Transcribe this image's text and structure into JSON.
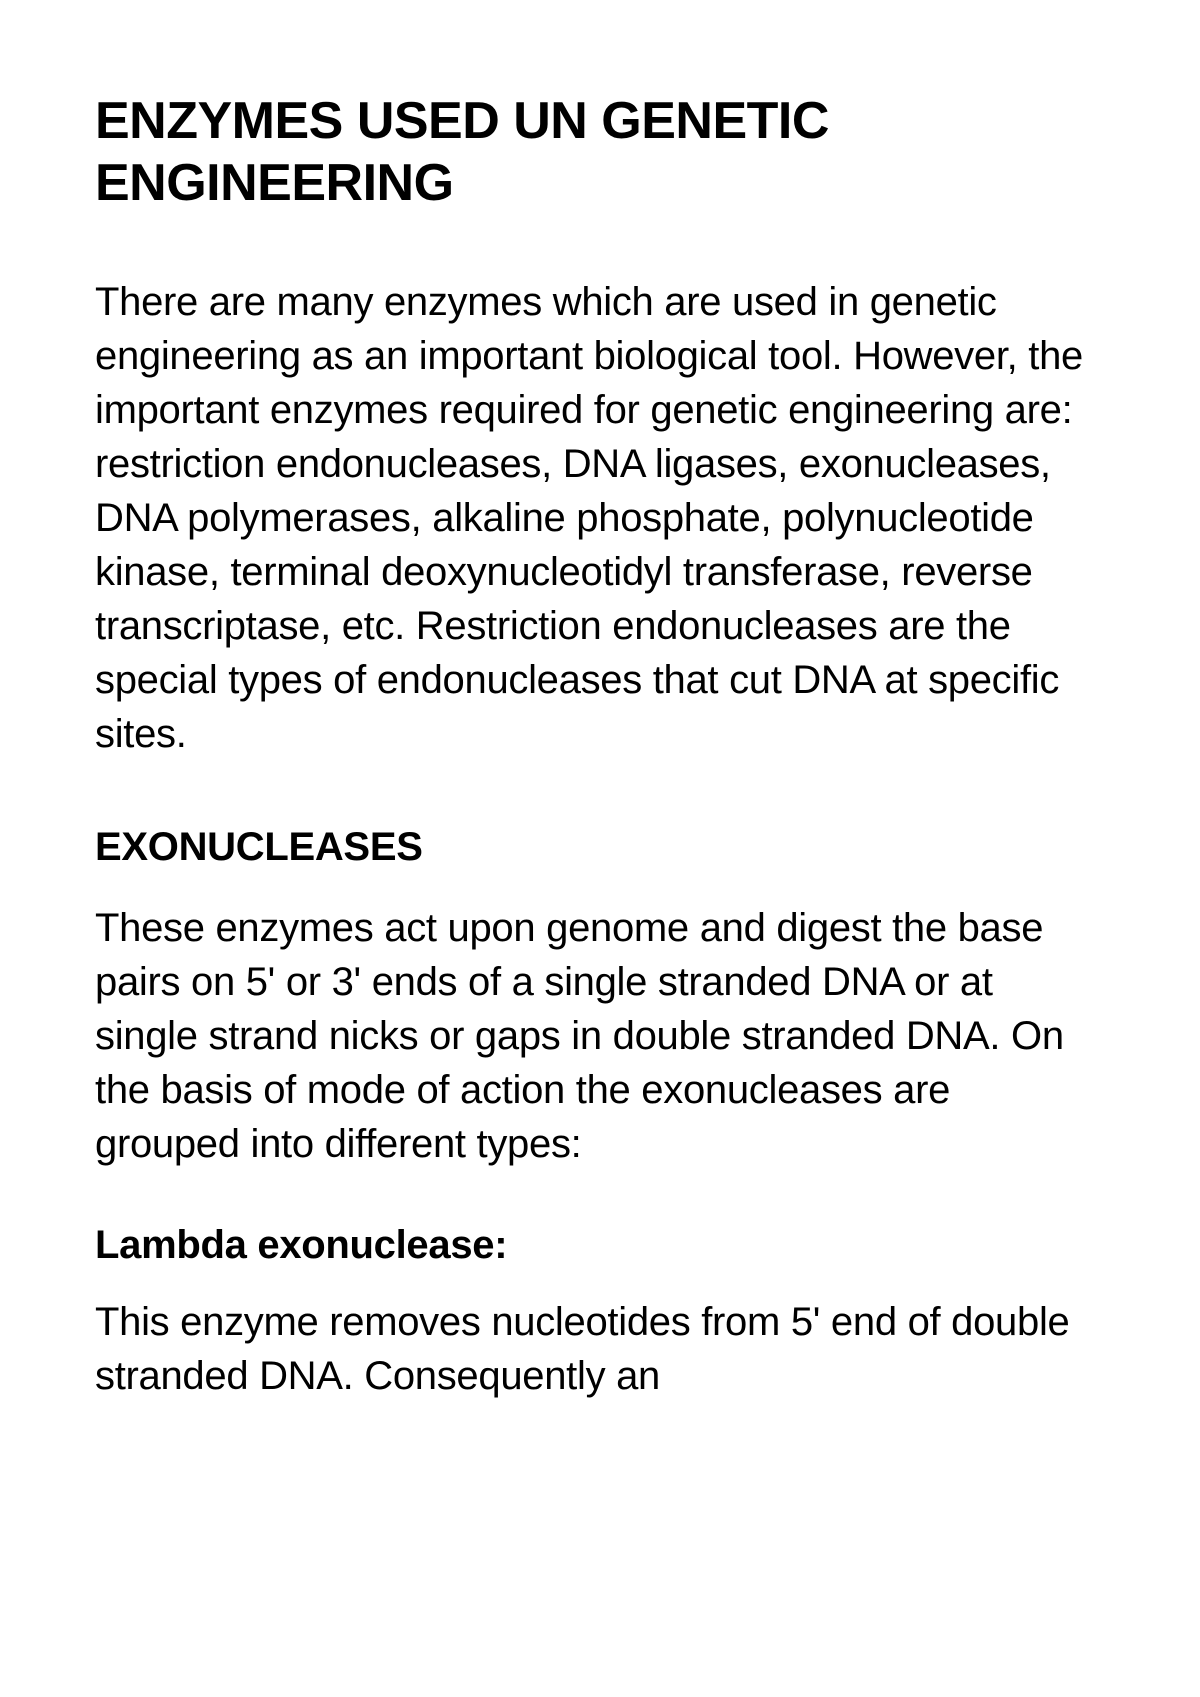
{
  "document": {
    "title": "ENZYMES USED UN GENETIC ENGINEERING",
    "intro_paragraph": "There are many enzymes which are used in genetic engineering as an important biological tool. However, the important enzymes required for genetic engineering are: restriction endonucleases, DNA ligases, exonucleases, DNA polymerases, alkaline phosphate, polynucleotide kinase, terminal deoxynucleotidyl transferase, reverse transcriptase, etc. Restriction endonucleases are the special types of endonucleases that cut DNA at specific sites.",
    "section1": {
      "heading": "EXONUCLEASES",
      "body": "These enzymes act upon genome and digest the base pairs on 5' or 3' ends of a single stranded DNA or at single strand nicks or gaps in double stranded DNA. On the basis of mode of action the exonucleases are grouped into different types:"
    },
    "section2": {
      "heading": "Lambda exonuclease:",
      "body": "This enzyme removes nucleotides from 5' end of double stranded DNA. Consequently an"
    },
    "styling": {
      "background_color": "#ffffff",
      "text_color": "#000000",
      "title_fontsize": 52,
      "title_fontweight": 800,
      "body_fontsize": 40,
      "body_fontweight": 400,
      "heading_fontweight": 800,
      "subheading_fontweight": 700,
      "font_family": "Helvetica Neue"
    }
  }
}
